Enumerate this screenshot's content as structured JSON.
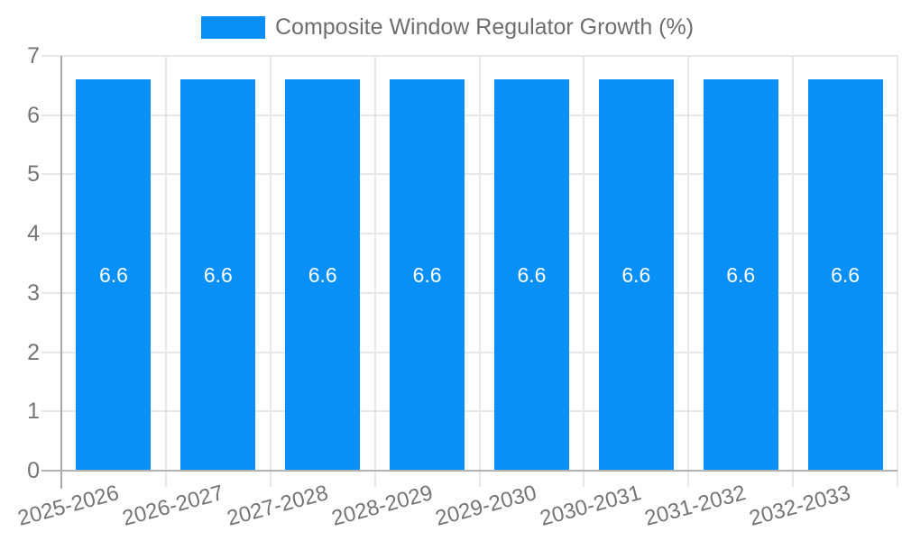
{
  "chart_data": {
    "type": "bar",
    "title": "Composite Window Regulator Growth (%)",
    "legend": {
      "label": "Composite Window Regulator Growth (%)",
      "position": "top"
    },
    "categories": [
      "2025-2026",
      "2026-2027",
      "2027-2028",
      "2028-2029",
      "2029-2030",
      "2030-2031",
      "2031-2032",
      "2032-2033"
    ],
    "values": [
      6.6,
      6.6,
      6.6,
      6.6,
      6.6,
      6.6,
      6.6,
      6.6
    ],
    "value_labels": [
      "6.6",
      "6.6",
      "6.6",
      "6.6",
      "6.6",
      "6.6",
      "6.6",
      "6.6"
    ],
    "xlabel": "",
    "ylabel": "",
    "ylim": [
      0,
      7
    ],
    "yticks": [
      0,
      1,
      2,
      3,
      4,
      5,
      6,
      7
    ],
    "grid": true,
    "legend_position": "top",
    "colors": {
      "bar": "#0990f8",
      "value_label": "#ffffff",
      "tick_text": "#757575",
      "legend_text": "#6e6e6e",
      "gridline": "#e7e7e7",
      "axis_line": "#b2b2b2",
      "y_axis_line": "#a9a9a9",
      "background": "#ffffff"
    }
  }
}
